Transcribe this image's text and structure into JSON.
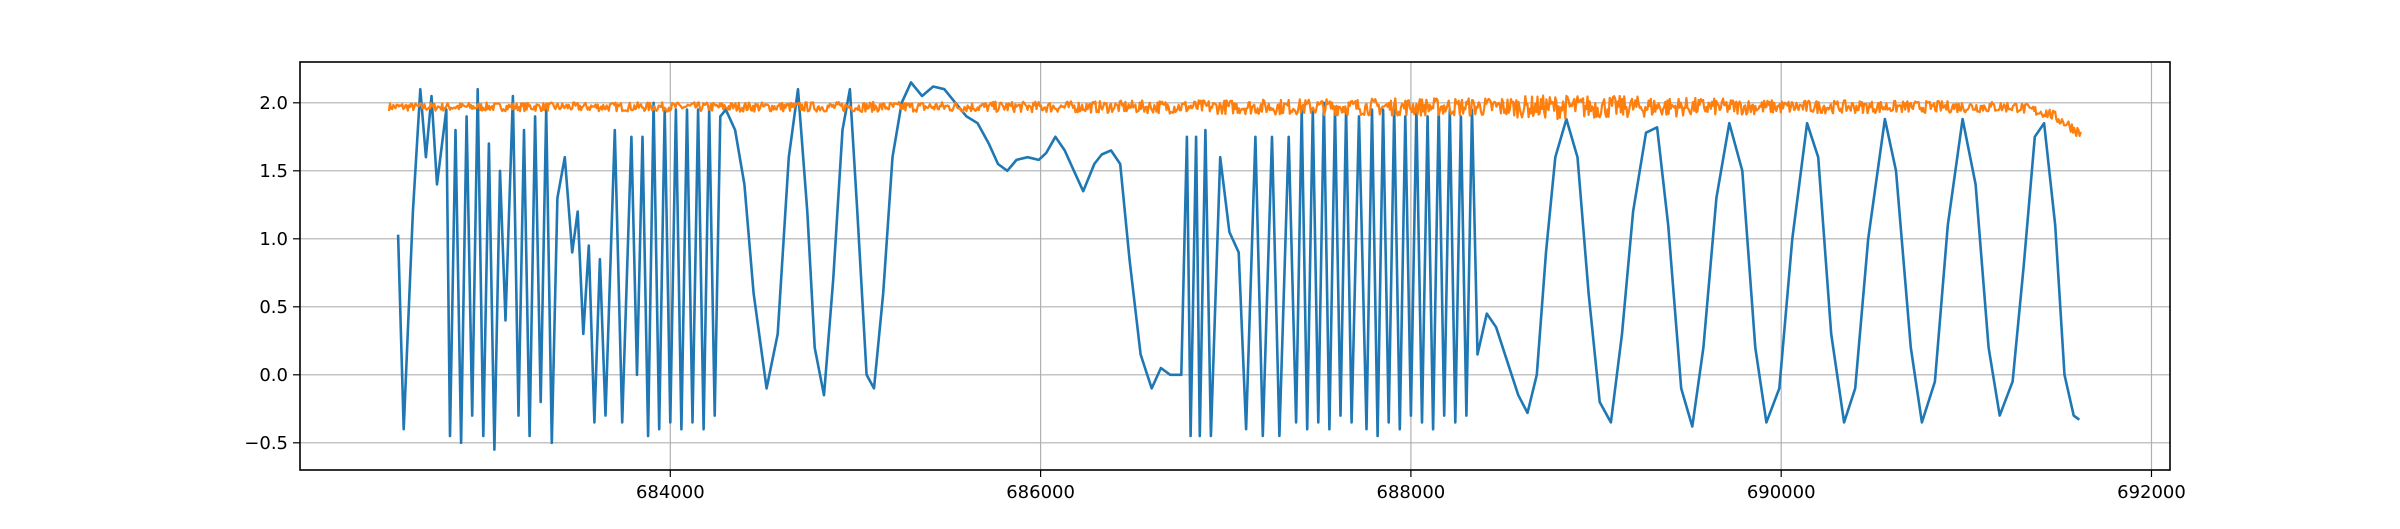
{
  "chart_data": {
    "type": "line",
    "title": "",
    "xlabel": "",
    "ylabel": "",
    "xlim": [
      682000,
      692100
    ],
    "ylim": [
      -0.7,
      2.3
    ],
    "grid": true,
    "x_ticks": [
      684000,
      686000,
      688000,
      690000,
      692000
    ],
    "x_tick_labels": [
      "684000",
      "686000",
      "688000",
      "690000",
      "692000"
    ],
    "y_ticks": [
      -0.5,
      0.0,
      0.5,
      1.0,
      1.5,
      2.0
    ],
    "y_tick_labels": [
      "−0.5",
      "0.0",
      "0.5",
      "1.0",
      "1.5",
      "2.0"
    ],
    "series": [
      {
        "color": "#1f77b4",
        "points": [
          [
            682530,
            1.03
          ],
          [
            682560,
            -0.4
          ],
          [
            682610,
            1.2
          ],
          [
            682650,
            2.1
          ],
          [
            682680,
            1.6
          ],
          [
            682710,
            2.05
          ],
          [
            682740,
            1.4
          ],
          [
            682790,
            1.95
          ],
          [
            682810,
            -0.45
          ],
          [
            682840,
            1.8
          ],
          [
            682870,
            -0.5
          ],
          [
            682900,
            1.9
          ],
          [
            682930,
            -0.3
          ],
          [
            682960,
            2.1
          ],
          [
            682990,
            -0.45
          ],
          [
            683020,
            1.7
          ],
          [
            683050,
            -0.55
          ],
          [
            683080,
            1.5
          ],
          [
            683110,
            0.4
          ],
          [
            683150,
            2.05
          ],
          [
            683180,
            -0.3
          ],
          [
            683210,
            1.8
          ],
          [
            683240,
            -0.45
          ],
          [
            683270,
            1.9
          ],
          [
            683300,
            -0.2
          ],
          [
            683330,
            1.95
          ],
          [
            683360,
            -0.5
          ],
          [
            683390,
            1.3
          ],
          [
            683430,
            1.6
          ],
          [
            683470,
            0.9
          ],
          [
            683500,
            1.2
          ],
          [
            683530,
            0.3
          ],
          [
            683560,
            0.95
          ],
          [
            683590,
            -0.35
          ],
          [
            683620,
            0.85
          ],
          [
            683650,
            -0.3
          ],
          [
            683700,
            1.8
          ],
          [
            683740,
            -0.35
          ],
          [
            683790,
            1.75
          ],
          [
            683820,
            0.0
          ],
          [
            683850,
            1.75
          ],
          [
            683880,
            -0.45
          ],
          [
            683910,
            2.0
          ],
          [
            683940,
            -0.4
          ],
          [
            683970,
            1.95
          ],
          [
            684000,
            -0.35
          ],
          [
            684030,
            1.95
          ],
          [
            684060,
            -0.4
          ],
          [
            684090,
            1.95
          ],
          [
            684120,
            -0.35
          ],
          [
            684150,
            1.95
          ],
          [
            684180,
            -0.4
          ],
          [
            684210,
            1.95
          ],
          [
            684240,
            -0.3
          ],
          [
            684270,
            1.9
          ],
          [
            684300,
            1.95
          ],
          [
            684350,
            1.8
          ],
          [
            684400,
            1.4
          ],
          [
            684450,
            0.6
          ],
          [
            684520,
            -0.1
          ],
          [
            684580,
            0.3
          ],
          [
            684640,
            1.6
          ],
          [
            684690,
            2.1
          ],
          [
            684740,
            1.2
          ],
          [
            684780,
            0.2
          ],
          [
            684830,
            -0.15
          ],
          [
            684880,
            0.7
          ],
          [
            684930,
            1.8
          ],
          [
            684970,
            2.1
          ],
          [
            685010,
            1.2
          ],
          [
            685060,
            0.0
          ],
          [
            685100,
            -0.1
          ],
          [
            685150,
            0.6
          ],
          [
            685200,
            1.6
          ],
          [
            685250,
            2.0
          ],
          [
            685300,
            2.15
          ],
          [
            685360,
            2.05
          ],
          [
            685420,
            2.12
          ],
          [
            685480,
            2.1
          ],
          [
            685540,
            2.0
          ],
          [
            685600,
            1.9
          ],
          [
            685660,
            1.85
          ],
          [
            685720,
            1.7
          ],
          [
            685770,
            1.55
          ],
          [
            685820,
            1.5
          ],
          [
            685870,
            1.58
          ],
          [
            685930,
            1.6
          ],
          [
            685990,
            1.58
          ],
          [
            686030,
            1.63
          ],
          [
            686080,
            1.75
          ],
          [
            686130,
            1.65
          ],
          [
            686180,
            1.5
          ],
          [
            686230,
            1.35
          ],
          [
            686290,
            1.55
          ],
          [
            686330,
            1.62
          ],
          [
            686380,
            1.65
          ],
          [
            686430,
            1.55
          ],
          [
            686480,
            0.85
          ],
          [
            686540,
            0.15
          ],
          [
            686600,
            -0.1
          ],
          [
            686650,
            0.05
          ],
          [
            686700,
            0.0
          ],
          [
            686760,
            0.0
          ],
          [
            686790,
            1.75
          ],
          [
            686810,
            -0.45
          ],
          [
            686840,
            1.75
          ],
          [
            686860,
            -0.45
          ],
          [
            686890,
            1.8
          ],
          [
            686920,
            -0.45
          ],
          [
            686970,
            1.6
          ],
          [
            687020,
            1.05
          ],
          [
            687070,
            0.9
          ],
          [
            687110,
            -0.4
          ],
          [
            687160,
            1.75
          ],
          [
            687200,
            -0.45
          ],
          [
            687250,
            1.75
          ],
          [
            687290,
            -0.45
          ],
          [
            687340,
            1.75
          ],
          [
            687380,
            -0.35
          ],
          [
            687410,
            1.95
          ],
          [
            687440,
            -0.4
          ],
          [
            687470,
            1.95
          ],
          [
            687500,
            -0.35
          ],
          [
            687530,
            2.0
          ],
          [
            687560,
            -0.4
          ],
          [
            687590,
            1.95
          ],
          [
            687620,
            -0.3
          ],
          [
            687650,
            1.95
          ],
          [
            687680,
            -0.35
          ],
          [
            687720,
            1.9
          ],
          [
            687760,
            -0.4
          ],
          [
            687790,
            1.95
          ],
          [
            687820,
            -0.45
          ],
          [
            687850,
            1.95
          ],
          [
            687880,
            -0.35
          ],
          [
            687910,
            1.95
          ],
          [
            687940,
            -0.4
          ],
          [
            687970,
            1.9
          ],
          [
            688000,
            -0.3
          ],
          [
            688030,
            1.95
          ],
          [
            688060,
            -0.35
          ],
          [
            688090,
            1.9
          ],
          [
            688120,
            -0.4
          ],
          [
            688150,
            1.95
          ],
          [
            688180,
            -0.3
          ],
          [
            688210,
            1.95
          ],
          [
            688240,
            -0.35
          ],
          [
            688270,
            1.9
          ],
          [
            688300,
            -0.3
          ],
          [
            688330,
            1.95
          ],
          [
            688360,
            0.15
          ],
          [
            688410,
            0.45
          ],
          [
            688460,
            0.35
          ],
          [
            688520,
            0.1
          ],
          [
            688580,
            -0.15
          ],
          [
            688630,
            -0.28
          ],
          [
            688680,
            0.0
          ],
          [
            688730,
            0.9
          ],
          [
            688780,
            1.6
          ],
          [
            688840,
            1.88
          ],
          [
            688900,
            1.6
          ],
          [
            688960,
            0.6
          ],
          [
            689020,
            -0.2
          ],
          [
            689080,
            -0.35
          ],
          [
            689140,
            0.3
          ],
          [
            689200,
            1.2
          ],
          [
            689270,
            1.78
          ],
          [
            689330,
            1.82
          ],
          [
            689390,
            1.1
          ],
          [
            689460,
            -0.1
          ],
          [
            689520,
            -0.38
          ],
          [
            689580,
            0.2
          ],
          [
            689650,
            1.3
          ],
          [
            689720,
            1.85
          ],
          [
            689790,
            1.5
          ],
          [
            689860,
            0.2
          ],
          [
            689920,
            -0.35
          ],
          [
            689990,
            -0.1
          ],
          [
            690060,
            1.0
          ],
          [
            690140,
            1.85
          ],
          [
            690200,
            1.6
          ],
          [
            690270,
            0.3
          ],
          [
            690340,
            -0.35
          ],
          [
            690400,
            -0.1
          ],
          [
            690470,
            1.0
          ],
          [
            690560,
            1.88
          ],
          [
            690620,
            1.5
          ],
          [
            690700,
            0.2
          ],
          [
            690760,
            -0.35
          ],
          [
            690830,
            -0.05
          ],
          [
            690900,
            1.1
          ],
          [
            690980,
            1.88
          ],
          [
            691050,
            1.4
          ],
          [
            691120,
            0.2
          ],
          [
            691180,
            -0.3
          ],
          [
            691250,
            -0.05
          ],
          [
            691310,
            0.8
          ],
          [
            691370,
            1.75
          ],
          [
            691420,
            1.85
          ],
          [
            691480,
            1.1
          ],
          [
            691530,
            0.0
          ],
          [
            691580,
            -0.3
          ],
          [
            691610,
            -0.33
          ]
        ]
      },
      {
        "color": "#ff7f0e",
        "x_start": 682480,
        "x_end": 691620,
        "level": 1.97,
        "noise": [
          [
            682480,
            0.03
          ],
          [
            686000,
            0.04
          ],
          [
            687500,
            0.06
          ],
          [
            688400,
            0.07
          ],
          [
            688800,
            0.09
          ],
          [
            689200,
            0.08
          ],
          [
            690000,
            0.05
          ],
          [
            691400,
            0.04
          ]
        ],
        "tail": [
          [
            691300,
            1.96
          ],
          [
            691450,
            1.92
          ],
          [
            691550,
            1.84
          ],
          [
            691620,
            1.77
          ]
        ]
      }
    ]
  }
}
